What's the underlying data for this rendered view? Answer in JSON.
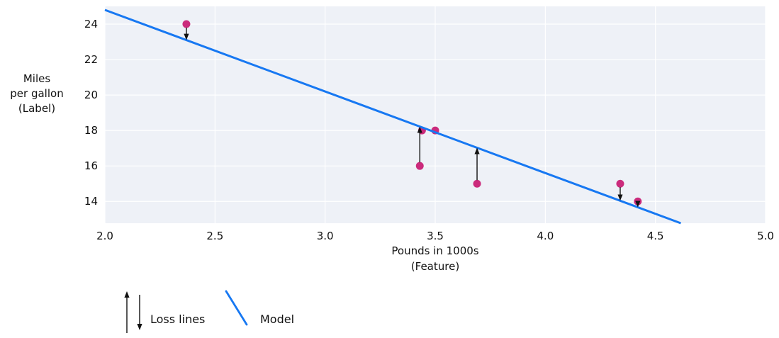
{
  "figure": {
    "background_color": "#ffffff",
    "plot_background_color": "#eef1f7",
    "grid_color": "#ffffff",
    "text_color": "#111111"
  },
  "chart_data": {
    "type": "scatter",
    "title": "",
    "xlabel_lines": [
      "Pounds in 1000s",
      "(Feature)"
    ],
    "ylabel_lines": [
      "Miles",
      "per gallon",
      "(Label)"
    ],
    "xlim": [
      2.0,
      5.0
    ],
    "ylim": [
      12.77,
      25.0
    ],
    "x_ticks": [
      2.0,
      2.5,
      3.0,
      3.5,
      4.0,
      4.5,
      5.0
    ],
    "x_tick_labels": [
      "2.0",
      "2.5",
      "3.0",
      "3.5",
      "4.0",
      "4.5",
      "5.0"
    ],
    "y_ticks": [
      14,
      16,
      18,
      20,
      22,
      24
    ],
    "y_tick_labels": [
      "14",
      "16",
      "18",
      "20",
      "22",
      "24"
    ],
    "grid": true,
    "legend_position": "bottom-left",
    "point_color": "#cb2b7c",
    "model_color": "#1778f2",
    "loss_arrow_color": "#111111",
    "points": [
      {
        "x": 2.37,
        "y": 24,
        "loss_arrow": "down"
      },
      {
        "x": 3.43,
        "y": 16,
        "loss_arrow": "up"
      },
      {
        "x": 3.44,
        "y": 18,
        "loss_arrow": "none"
      },
      {
        "x": 3.5,
        "y": 18,
        "loss_arrow": "none"
      },
      {
        "x": 3.69,
        "y": 15,
        "loss_arrow": "up"
      },
      {
        "x": 4.34,
        "y": 15,
        "loss_arrow": "down"
      },
      {
        "x": 4.42,
        "y": 14,
        "loss_arrow": "down"
      }
    ],
    "model_line": {
      "intercept": 34.0,
      "slope": -4.6
    },
    "legend": [
      {
        "label": "Loss lines",
        "symbol": "up-down-arrows"
      },
      {
        "label": "Model",
        "symbol": "line"
      }
    ]
  }
}
